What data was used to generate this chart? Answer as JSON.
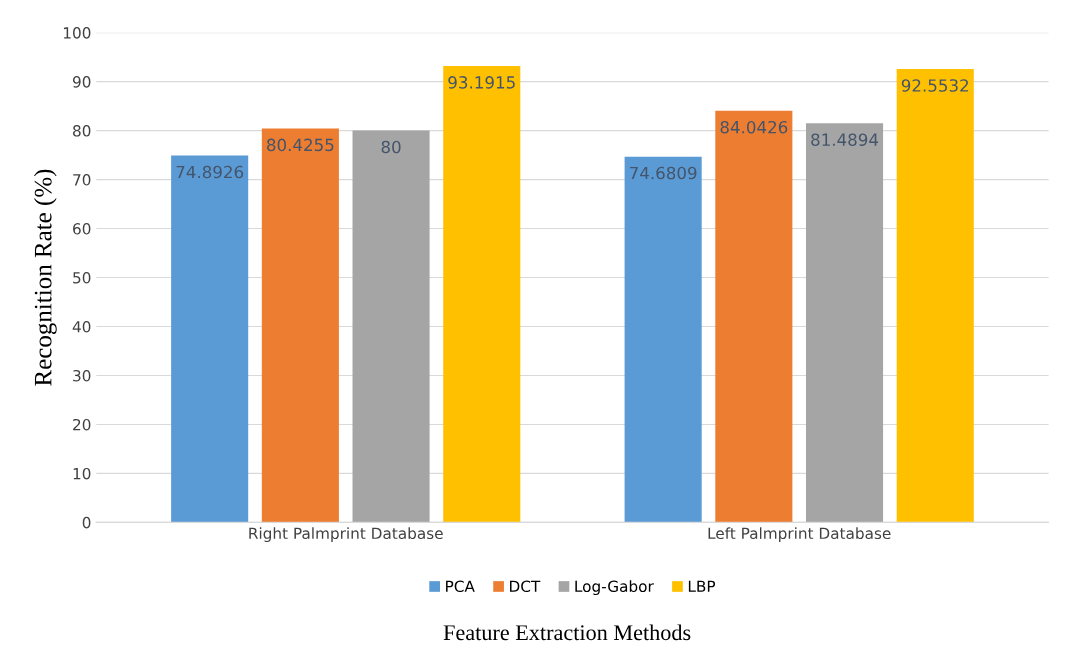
{
  "chart_data": {
    "type": "bar",
    "xlabel": "Feature Extraction Methods",
    "ylabel": "Recognition Rate (%)",
    "categories": [
      "Right Palmprint Database",
      "Left Palmprint Database"
    ],
    "series": [
      {
        "name": "PCA",
        "color": "#5b9bd5",
        "values": [
          74.8926,
          74.6809
        ]
      },
      {
        "name": "DCT",
        "color": "#ed7d31",
        "values": [
          80.4255,
          84.0426
        ]
      },
      {
        "name": "Log-Gabor",
        "color": "#a5a5a5",
        "values": [
          80,
          81.4894
        ]
      },
      {
        "name": "LBP",
        "color": "#ffc000",
        "values": [
          93.1915,
          92.5532
        ]
      }
    ],
    "ylim": [
      0,
      100
    ],
    "yticks": [
      0,
      10,
      20,
      30,
      40,
      50,
      60,
      70,
      80,
      90,
      100
    ],
    "grid": "y",
    "legend": "bottom",
    "data_labels": true
  }
}
